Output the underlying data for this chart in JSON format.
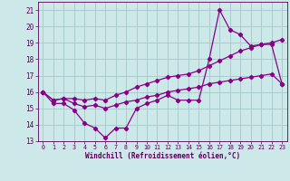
{
  "xlabel": "Windchill (Refroidissement éolien,°C)",
  "bg_color": "#cce8e8",
  "grid_color": "#aacccc",
  "line_color": "#880088",
  "xlim": [
    -0.5,
    23.5
  ],
  "ylim": [
    13,
    21.5
  ],
  "yticks": [
    13,
    14,
    15,
    16,
    17,
    18,
    19,
    20,
    21
  ],
  "xticks": [
    0,
    1,
    2,
    3,
    4,
    5,
    6,
    7,
    8,
    9,
    10,
    11,
    12,
    13,
    14,
    15,
    16,
    17,
    18,
    19,
    20,
    21,
    22,
    23
  ],
  "series": [
    {
      "x": [
        0,
        1,
        2,
        3,
        4,
        5,
        6,
        7,
        8,
        9,
        10,
        11,
        12,
        13,
        14,
        15,
        16,
        17,
        18,
        19,
        20,
        21,
        22,
        23
      ],
      "y": [
        16.0,
        15.3,
        15.3,
        14.9,
        14.1,
        13.8,
        13.2,
        13.8,
        13.8,
        15.0,
        15.3,
        15.5,
        15.8,
        15.5,
        15.5,
        15.5,
        18.0,
        21.0,
        19.8,
        19.5,
        18.8,
        18.9,
        18.9,
        16.5
      ],
      "linestyle": "-"
    },
    {
      "x": [
        0,
        1,
        2,
        3,
        4,
        5,
        6,
        7,
        8,
        9,
        10,
        11,
        12,
        13,
        14,
        15,
        16,
        17,
        18,
        19,
        20,
        21,
        22,
        23
      ],
      "y": [
        16.0,
        15.5,
        15.6,
        15.6,
        15.5,
        15.6,
        15.5,
        15.8,
        16.0,
        16.3,
        16.5,
        16.7,
        16.9,
        17.0,
        17.1,
        17.3,
        17.6,
        17.9,
        18.2,
        18.5,
        18.7,
        18.9,
        19.0,
        19.2
      ],
      "linestyle": "-"
    },
    {
      "x": [
        0,
        1,
        2,
        3,
        4,
        5,
        6,
        7,
        8,
        9,
        10,
        11,
        12,
        13,
        14,
        15,
        16,
        17,
        18,
        19,
        20,
        21,
        22,
        23
      ],
      "y": [
        16.0,
        15.5,
        15.6,
        15.3,
        15.1,
        15.2,
        15.0,
        15.2,
        15.4,
        15.5,
        15.7,
        15.8,
        16.0,
        16.1,
        16.2,
        16.3,
        16.5,
        16.6,
        16.7,
        16.8,
        16.9,
        17.0,
        17.1,
        16.5
      ],
      "linestyle": "-"
    }
  ]
}
